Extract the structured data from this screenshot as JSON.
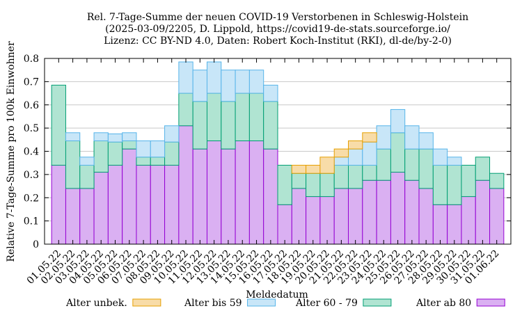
{
  "chart_data": {
    "type": "bar",
    "stacked": true,
    "title": [
      "Rel. 7-Tage-Summe der neuen COVID-19 Verstorbenen in Schleswig-Holstein",
      "(2025-03-09/2205, D. Lippold, https://covid19-de-stats.sourceforge.io/",
      "Lizenz: CC BY-ND 4.0, Daten: Robert Koch-Institut (RKI), dl-de/by-2-0)"
    ],
    "xlabel": "Meldedatum",
    "ylabel": "Relative 7-Tage-Summe pro 100k Einwohner",
    "ylim": [
      0,
      0.8
    ],
    "yticks": [
      "0",
      "0.1",
      "0.2",
      "0.3",
      "0.4",
      "0.5",
      "0.6",
      "0.7",
      "0.8"
    ],
    "legend_position": "bottom",
    "categories": [
      "01.05.22",
      "02.05.22",
      "03.05.22",
      "04.05.22",
      "05.05.22",
      "06.05.22",
      "07.05.22",
      "08.05.22",
      "09.05.22",
      "10.05.22",
      "11.05.22",
      "12.05.22",
      "13.05.22",
      "14.05.22",
      "15.05.22",
      "16.05.22",
      "17.05.22",
      "18.05.22",
      "19.05.22",
      "20.05.22",
      "21.05.22",
      "22.05.22",
      "23.05.22",
      "24.05.22",
      "25.05.22",
      "26.05.22",
      "27.05.22",
      "28.05.22",
      "29.05.22",
      "30.05.22",
      "31.05.22",
      "01.06.22"
    ],
    "series": [
      {
        "name": "Alter ab 80",
        "fill": "#dab0f2",
        "stroke": "#9400d3",
        "values": [
          0.34,
          0.24,
          0.24,
          0.31,
          0.34,
          0.41,
          0.34,
          0.34,
          0.34,
          0.51,
          0.41,
          0.445,
          0.41,
          0.445,
          0.445,
          0.41,
          0.17,
          0.24,
          0.205,
          0.205,
          0.24,
          0.24,
          0.275,
          0.275,
          0.31,
          0.275,
          0.24,
          0.17,
          0.17,
          0.205,
          0.275,
          0.24
        ]
      },
      {
        "name": "Alter 60 - 79",
        "fill": "#b0e4d2",
        "stroke": "#009e73",
        "values": [
          0.345,
          0.205,
          0.1,
          0.135,
          0.1,
          0.035,
          0.035,
          0.035,
          0.1,
          0.14,
          0.205,
          0.205,
          0.205,
          0.205,
          0.205,
          0.205,
          0.17,
          0.065,
          0.1,
          0.1,
          0.1,
          0.1,
          0.065,
          0.135,
          0.17,
          0.135,
          0.17,
          0.17,
          0.17,
          0.135,
          0.1,
          0.065
        ]
      },
      {
        "name": "Alter bis 59",
        "fill": "#c8e6f8",
        "stroke": "#56b4e9",
        "values": [
          0,
          0.035,
          0.035,
          0.035,
          0.035,
          0.035,
          0.07,
          0.07,
          0.07,
          0.135,
          0.135,
          0.135,
          0.135,
          0.1,
          0.1,
          0.07,
          0,
          0,
          0,
          0,
          0.035,
          0.07,
          0.1,
          0.1,
          0.1,
          0.1,
          0.07,
          0.07,
          0.035,
          0,
          0,
          0
        ]
      },
      {
        "name": "Alter unbek.",
        "fill": "#f8dca8",
        "stroke": "#e69f00",
        "values": [
          0,
          0,
          0,
          0,
          0,
          0,
          0,
          0,
          0,
          0,
          0,
          0,
          0,
          0,
          0,
          0,
          0,
          0.035,
          0.035,
          0.07,
          0.035,
          0.035,
          0.04,
          0,
          0,
          0,
          0,
          0,
          0,
          0,
          0,
          0
        ]
      }
    ],
    "legend_order": [
      "Alter unbek.",
      "Alter bis 59",
      "Alter 60 - 79",
      "Alter ab 80"
    ]
  }
}
